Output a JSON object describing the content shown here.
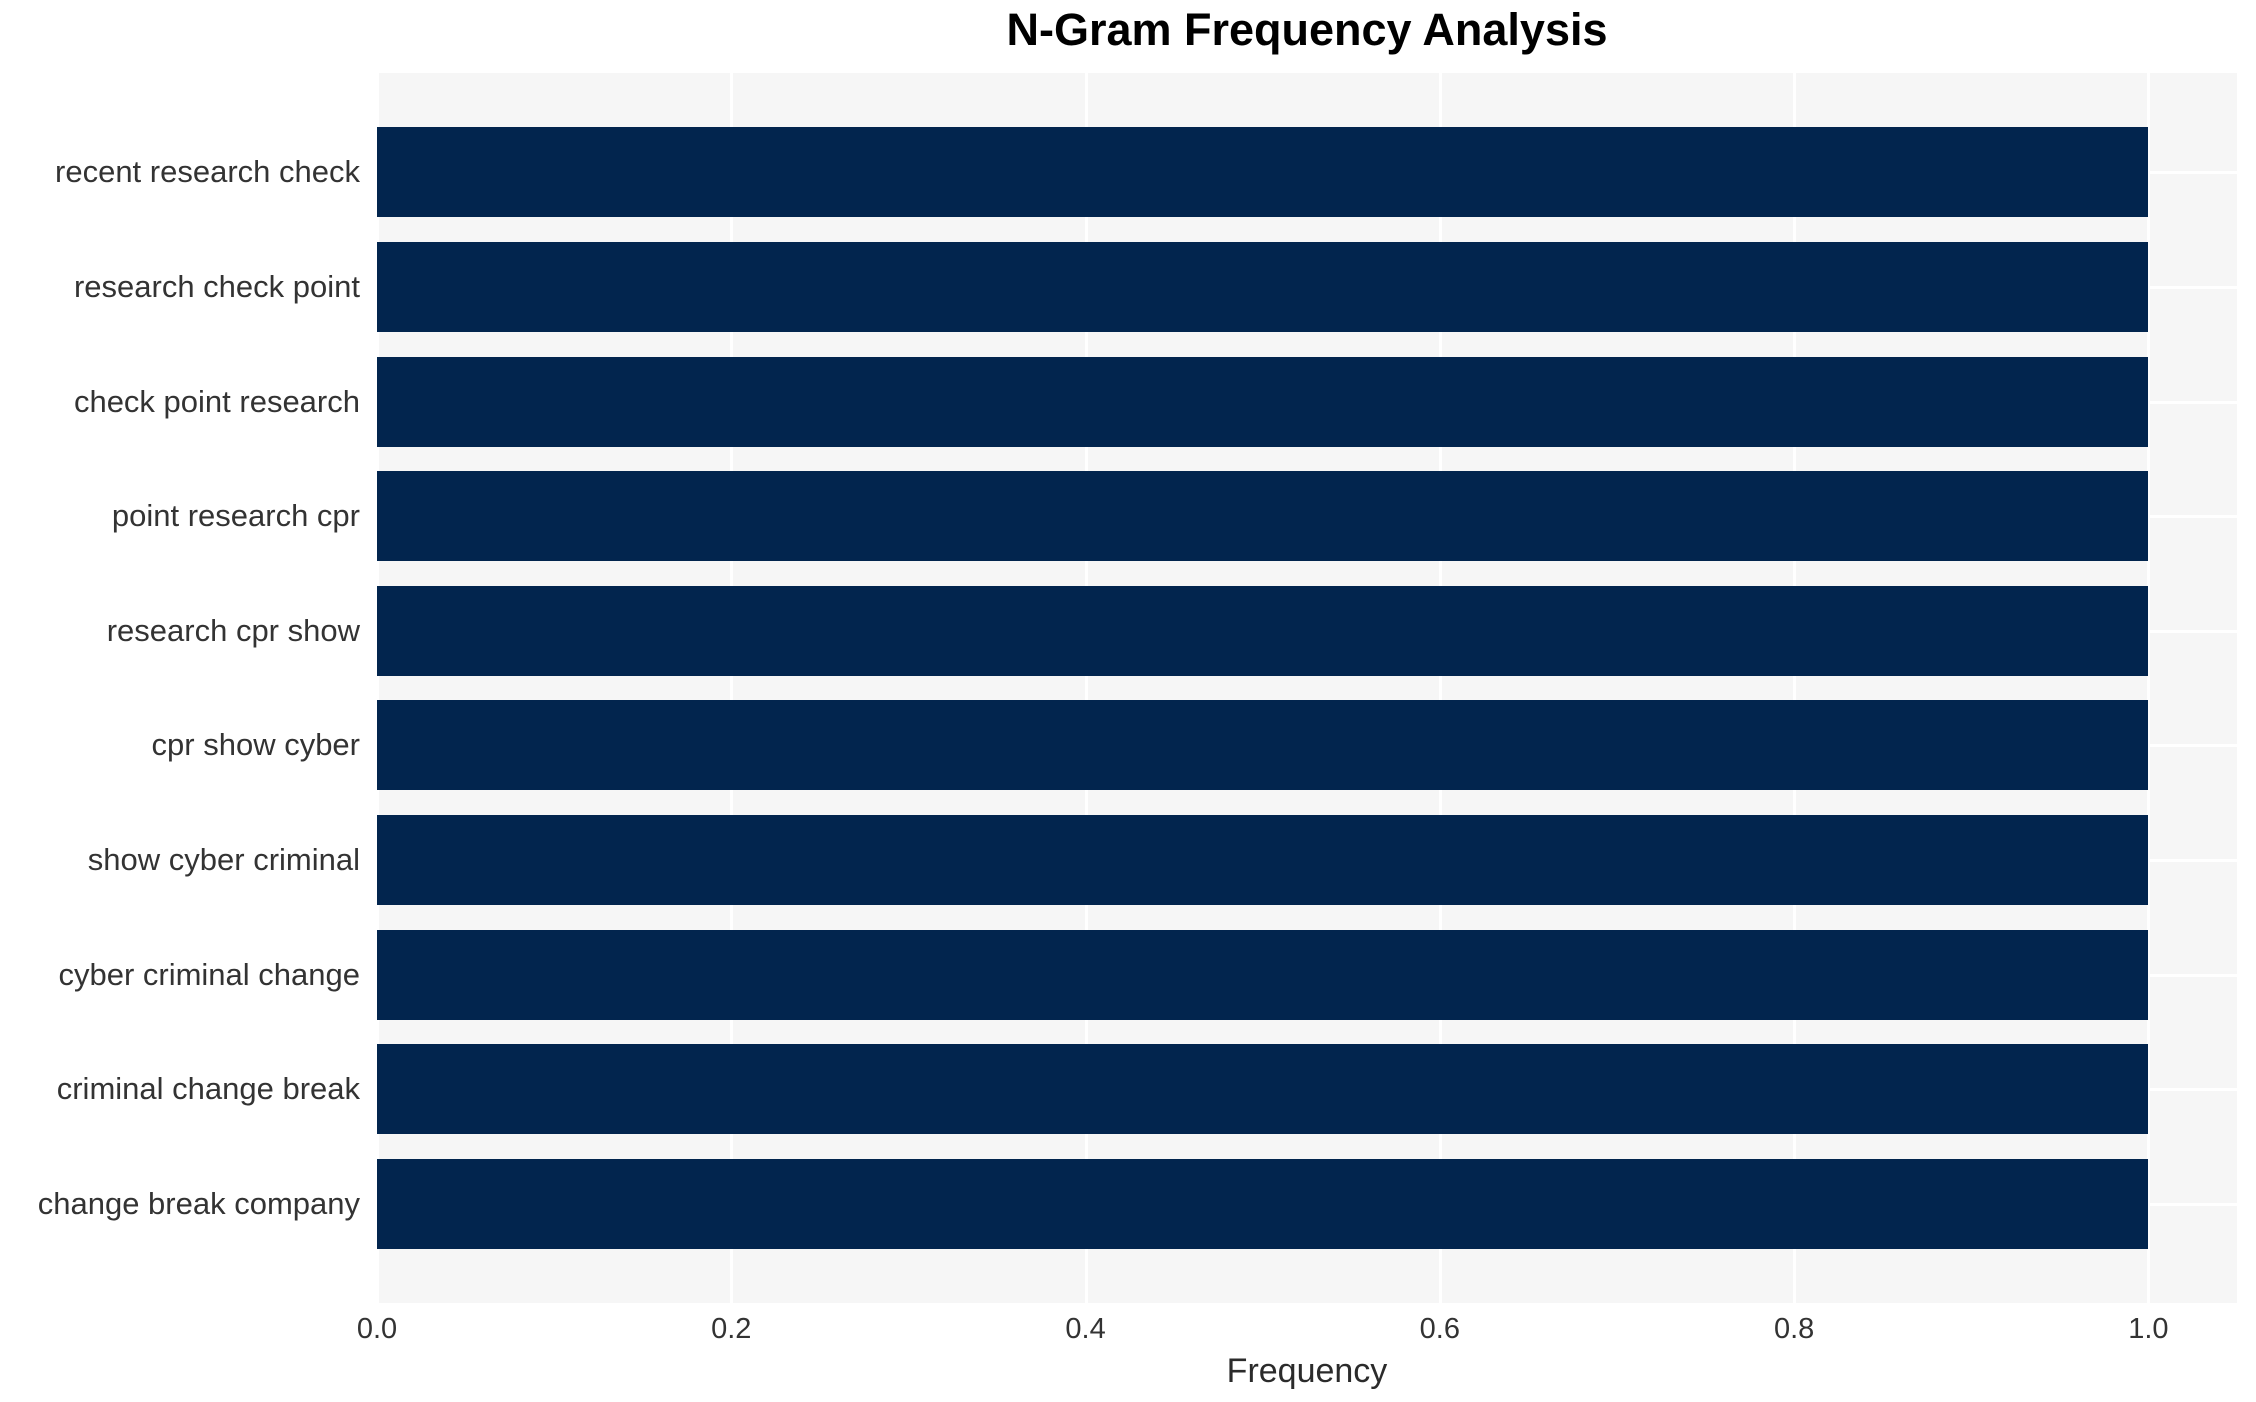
{
  "chart_data": {
    "type": "bar",
    "orientation": "horizontal",
    "title": "N-Gram Frequency Analysis",
    "xlabel": "Frequency",
    "ylabel": "",
    "categories": [
      "recent research check",
      "research check point",
      "check point research",
      "point research cpr",
      "research cpr show",
      "cpr show cyber",
      "show cyber criminal",
      "cyber criminal change",
      "criminal change break",
      "change break company"
    ],
    "values": [
      1.0,
      1.0,
      1.0,
      1.0,
      1.0,
      1.0,
      1.0,
      1.0,
      1.0,
      1.0
    ],
    "xlim": [
      0,
      1.05
    ],
    "xticks": [
      0.0,
      0.2,
      0.4,
      0.6,
      0.8,
      1.0
    ],
    "xtick_labels": [
      "0.0",
      "0.2",
      "0.4",
      "0.6",
      "0.8",
      "1.0"
    ],
    "grid": true,
    "legend": null,
    "colors": {
      "bar": "#02254e",
      "plot_background": "#f6f6f6",
      "figure_background": "#ffffff",
      "gridline": "#ffffff",
      "title_text": "#000000",
      "tick_text": "#333333",
      "axis_label_text": "#2b2b2b"
    }
  }
}
